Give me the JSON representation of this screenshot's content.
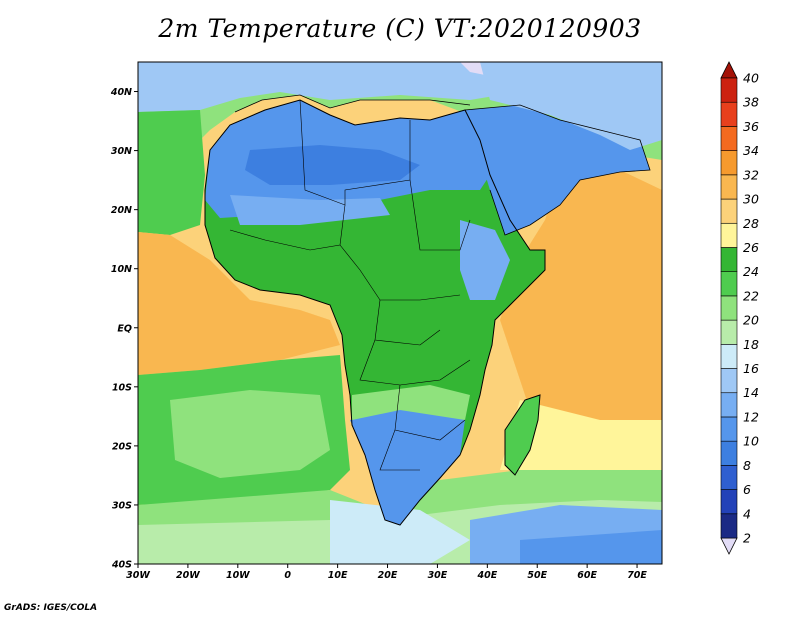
{
  "title": "2m Temperature (C) VT:2020120903",
  "credit": "GrADS: IGES/COLA",
  "map": {
    "type": "heatmap",
    "lon_range": [
      -30,
      75
    ],
    "lat_range": [
      -40,
      45
    ],
    "lon_ticks": [
      "30W",
      "20W",
      "10W",
      "0",
      "10E",
      "20E",
      "30E",
      "40E",
      "50E",
      "60E",
      "70E"
    ],
    "lat_ticks": [
      "40S",
      "30S",
      "20S",
      "10S",
      "EQ",
      "10N",
      "20N",
      "30N",
      "40N"
    ]
  },
  "colorbar": {
    "labels": [
      "2",
      "4",
      "6",
      "8",
      "10",
      "12",
      "14",
      "16",
      "18",
      "20",
      "22",
      "24",
      "26",
      "28",
      "30",
      "32",
      "34",
      "36",
      "38",
      "40"
    ],
    "colors": [
      "#1b2a85",
      "#2342b8",
      "#2f5fd0",
      "#3d7fe0",
      "#5596ec",
      "#77aef2",
      "#9fc8f5",
      "#cdebf8",
      "#b8ecaa",
      "#8fe27d",
      "#4fcc4f",
      "#34b634",
      "#fff59a",
      "#fcd27a",
      "#f9b750",
      "#f69a2e",
      "#f46a1f",
      "#e8401d",
      "#cc2210",
      "#a31208"
    ],
    "under_color": "#e2dcf6",
    "over_color": "#a31208"
  }
}
